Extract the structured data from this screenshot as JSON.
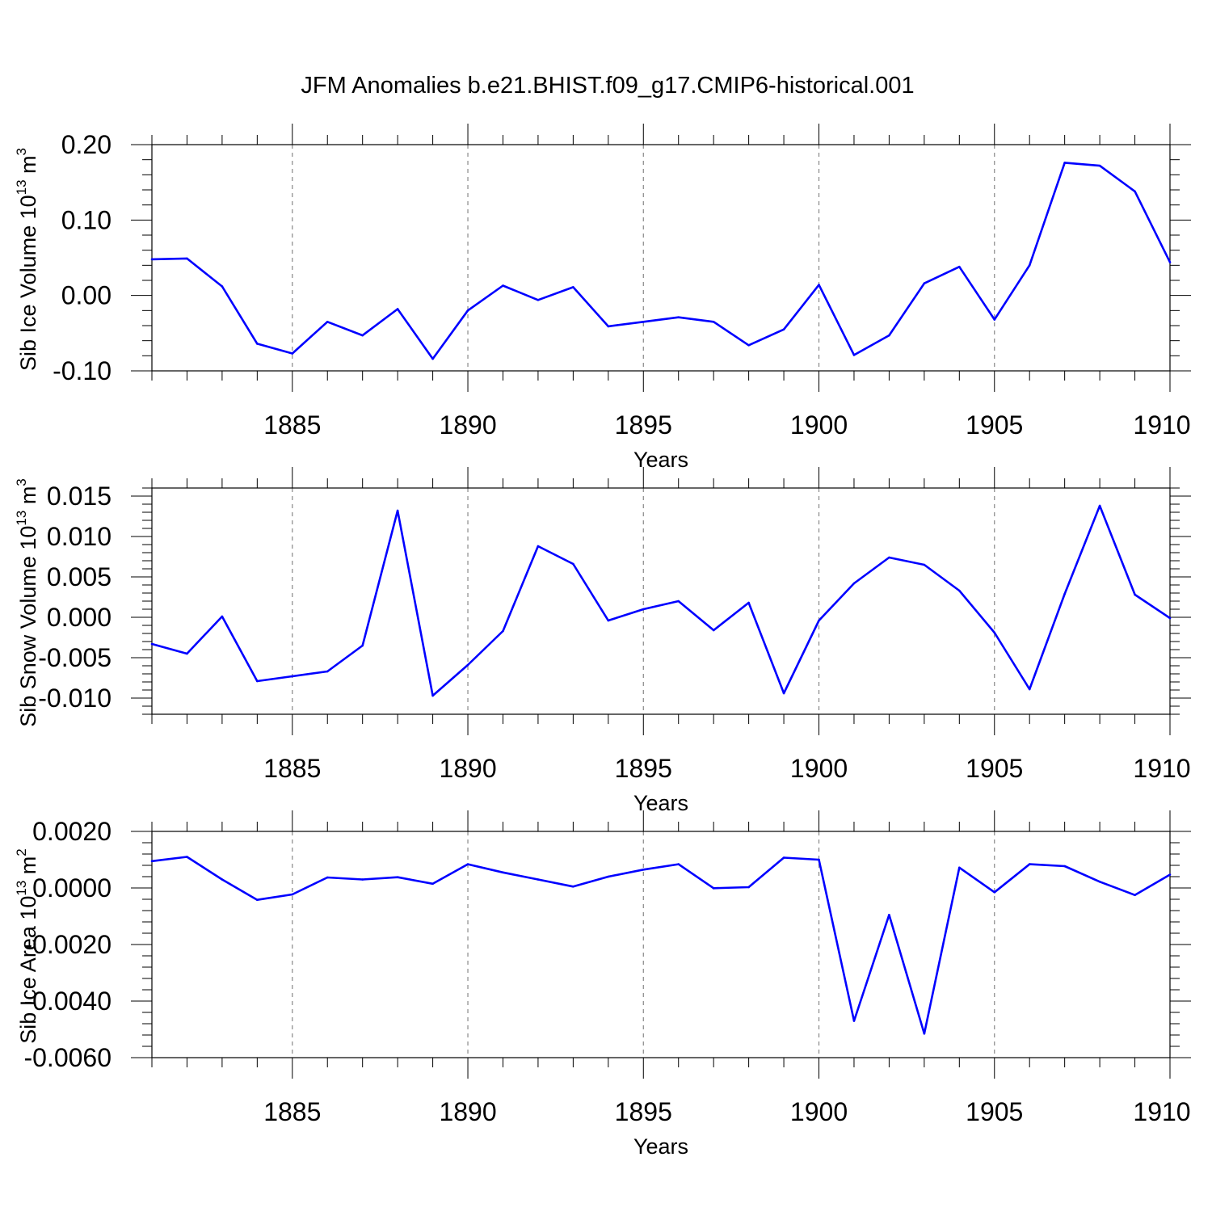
{
  "title": "JFM Anomalies b.e21.BHIST.f09_g17.CMIP6-historical.001",
  "colors": {
    "series": "#0000ff",
    "grid": "#888888",
    "axis": "#000000"
  },
  "chart_data": [
    {
      "type": "line",
      "title": "JFM Anomalies b.e21.BHIST.f09_g17.CMIP6-historical.001",
      "xlabel": "Years",
      "ylabel": "Sib Ice Volume 10",
      "ylabel_exp": "13",
      "ylabel_unit": " m",
      "ylabel_unit_exp": "3",
      "xlim": [
        1881,
        1910
      ],
      "ylim": [
        -0.1,
        0.2
      ],
      "yticks": [
        -0.1,
        0.0,
        0.1,
        0.2
      ],
      "ytick_labels": [
        "-0.10",
        "0.00",
        "0.10",
        "0.20"
      ],
      "xticks": [
        1885,
        1890,
        1895,
        1900,
        1905,
        1910
      ],
      "xtick_labels": [
        "1885",
        "1890",
        "1895",
        "1900",
        "1905",
        "1910"
      ],
      "x": [
        1881,
        1882,
        1883,
        1884,
        1885,
        1886,
        1887,
        1888,
        1889,
        1890,
        1891,
        1892,
        1893,
        1894,
        1895,
        1896,
        1897,
        1898,
        1899,
        1900,
        1901,
        1902,
        1903,
        1904,
        1905,
        1906,
        1907,
        1908,
        1909,
        1910
      ],
      "values": [
        0.048,
        0.049,
        0.012,
        -0.064,
        -0.077,
        -0.035,
        -0.053,
        -0.018,
        -0.084,
        -0.02,
        0.013,
        -0.006,
        0.011,
        -0.041,
        -0.035,
        -0.029,
        -0.035,
        -0.066,
        -0.045,
        0.014,
        -0.079,
        -0.053,
        0.016,
        0.038,
        -0.032,
        0.04,
        0.176,
        0.172,
        0.138,
        0.044
      ]
    },
    {
      "type": "line",
      "xlabel": "Years",
      "ylabel": "Sib Snow Volume 10",
      "ylabel_exp": "13",
      "ylabel_unit": " m",
      "ylabel_unit_exp": "3",
      "xlim": [
        1881,
        1910
      ],
      "ylim": [
        -0.012,
        0.016
      ],
      "yticks": [
        -0.01,
        -0.005,
        0.0,
        0.005,
        0.01,
        0.015
      ],
      "ytick_labels": [
        "-0.010",
        "-0.005",
        "0.000",
        "0.005",
        "0.010",
        "0.015"
      ],
      "xticks": [
        1885,
        1890,
        1895,
        1900,
        1905,
        1910
      ],
      "xtick_labels": [
        "1885",
        "1890",
        "1895",
        "1900",
        "1905",
        "1910"
      ],
      "x": [
        1881,
        1882,
        1883,
        1884,
        1885,
        1886,
        1887,
        1888,
        1889,
        1890,
        1891,
        1892,
        1893,
        1894,
        1895,
        1896,
        1897,
        1898,
        1899,
        1900,
        1901,
        1902,
        1903,
        1904,
        1905,
        1906,
        1907,
        1908,
        1909,
        1910
      ],
      "values": [
        -0.0033,
        -0.0045,
        0.0001,
        -0.0079,
        -0.0073,
        -0.0067,
        -0.0035,
        0.0132,
        -0.0097,
        -0.0059,
        -0.0017,
        0.0088,
        0.0066,
        -0.0004,
        0.001,
        0.002,
        -0.0016,
        0.0018,
        -0.0094,
        -0.0004,
        0.0042,
        0.0074,
        0.0065,
        0.0033,
        -0.0019,
        -0.0089,
        0.0029,
        0.0138,
        0.0028,
        -0.0001
      ]
    },
    {
      "type": "line",
      "xlabel": "Years",
      "ylabel": "Sib Ice Area 10",
      "ylabel_exp": "13",
      "ylabel_unit": " m",
      "ylabel_unit_exp": "2",
      "xlim": [
        1881,
        1910
      ],
      "ylim": [
        -0.006,
        0.002
      ],
      "yticks": [
        -0.006,
        -0.004,
        -0.002,
        0.0,
        0.002
      ],
      "ytick_labels": [
        "-0.0060",
        "-0.0040",
        "-0.0020",
        "0.0000",
        "0.0020"
      ],
      "xticks": [
        1885,
        1890,
        1895,
        1900,
        1905,
        1910
      ],
      "xtick_labels": [
        "1885",
        "1890",
        "1895",
        "1900",
        "1905",
        "1910"
      ],
      "x": [
        1881,
        1882,
        1883,
        1884,
        1885,
        1886,
        1887,
        1888,
        1889,
        1890,
        1891,
        1892,
        1893,
        1894,
        1895,
        1896,
        1897,
        1898,
        1899,
        1900,
        1901,
        1902,
        1903,
        1904,
        1905,
        1906,
        1907,
        1908,
        1909,
        1910
      ],
      "values": [
        0.00095,
        0.0011,
        0.0003,
        -0.00042,
        -0.00023,
        0.00037,
        0.0003,
        0.00038,
        0.00015,
        0.00084,
        0.00055,
        0.0003,
        5e-05,
        0.0004,
        0.00065,
        0.00084,
        -1e-05,
        3e-05,
        0.00107,
        0.001,
        -0.0047,
        -0.00095,
        -0.00515,
        0.00072,
        -0.00015,
        0.00084,
        0.00077,
        0.00022,
        -0.00025,
        0.00047
      ]
    }
  ]
}
